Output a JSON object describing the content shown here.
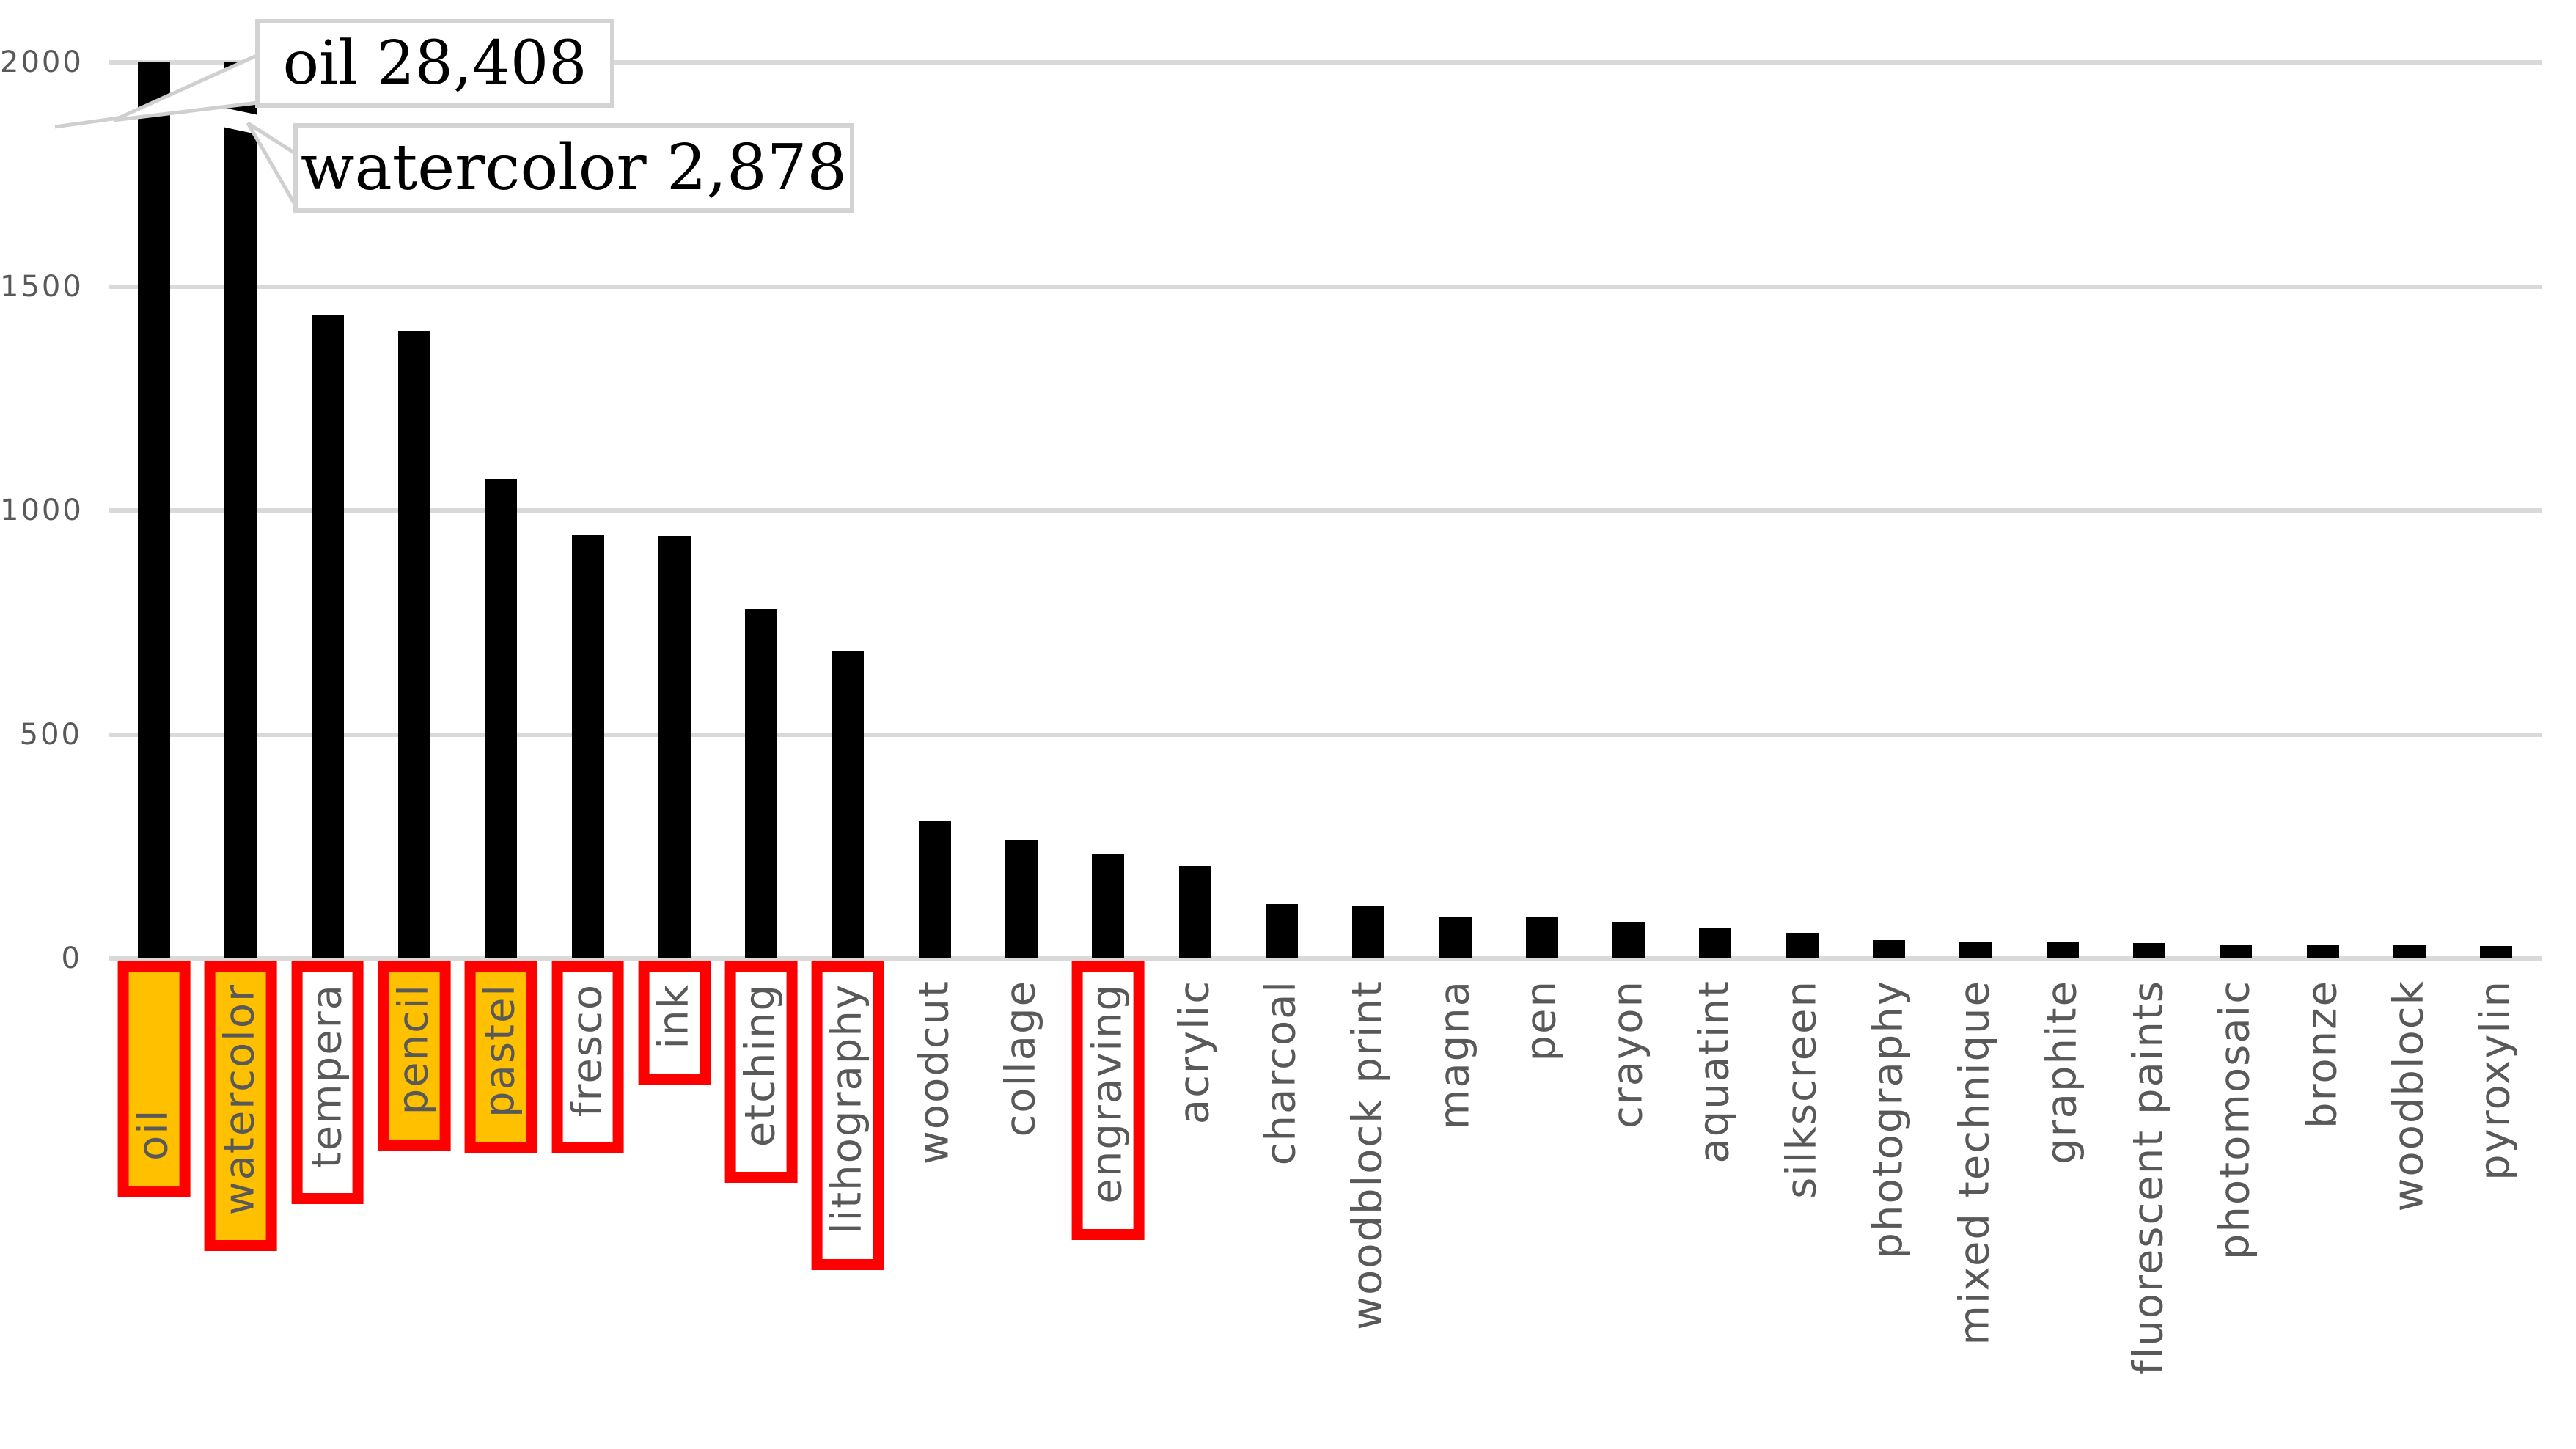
{
  "chart_data": {
    "type": "bar",
    "title": "",
    "xlabel": "",
    "ylabel": "",
    "axis": {
      "ymin": 0,
      "ymax": 2000,
      "yticks": [
        0,
        500,
        1000,
        1500,
        2000
      ],
      "grid": true,
      "note": "bars for oil and watercolor exceed the axis maximum and are drawn clipped with white break marks"
    },
    "categories": [
      "oil",
      "watercolor",
      "tempera",
      "pencil",
      "pastel",
      "fresco",
      "ink",
      "etching",
      "lithography",
      "woodcut",
      "collage",
      "engraving",
      "acrylic",
      "charcoal",
      "woodblock print",
      "magna",
      "pen",
      "crayon",
      "aquatint",
      "silkscreen",
      "photography",
      "mixed technique",
      "graphite",
      "fluorescent paints",
      "photomosaic",
      "bronze",
      "woodblock",
      "pyroxylin"
    ],
    "values": [
      28408,
      2878,
      1435,
      1400,
      1070,
      945,
      943,
      780,
      686,
      306,
      264,
      233,
      207,
      121,
      116,
      93,
      93,
      82,
      67,
      56,
      41,
      38,
      38,
      34,
      29,
      29,
      29,
      28
    ],
    "label_styles": [
      "orange",
      "orange",
      "red",
      "orange",
      "orange",
      "red",
      "red",
      "red",
      "red",
      "none",
      "none",
      "red",
      "none",
      "none",
      "none",
      "none",
      "none",
      "none",
      "none",
      "none",
      "none",
      "none",
      "none",
      "none",
      "none",
      "none",
      "none",
      "none"
    ],
    "annotations": [
      {
        "text": "oil 28,408",
        "target": "oil"
      },
      {
        "text": "watercolor 2,878",
        "target": "watercolor"
      }
    ],
    "legend": null,
    "colors": {
      "bar": "#000000",
      "highlight_fill": "#FFC000",
      "highlight_border": "#FF0000",
      "gridline": "#D9D9D9",
      "axis_text": "#595959",
      "label_text": "#595959",
      "callout_border": "#D3D3D3",
      "callout_bg": "#FFFFFF",
      "callout_text": "#000000"
    }
  }
}
